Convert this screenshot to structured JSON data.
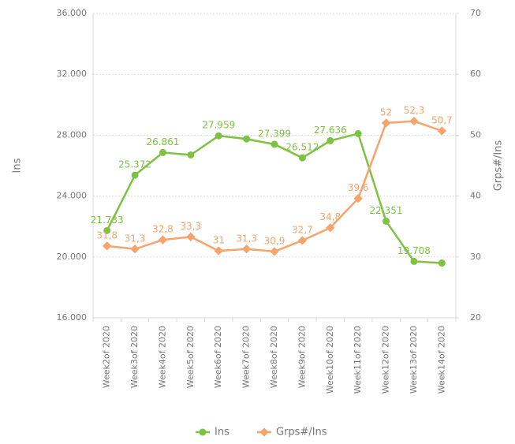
{
  "chart_data": {
    "type": "line",
    "categories": [
      "Week2of 2020",
      "Week3of 2020",
      "Week4of 2020",
      "Week5of 2020",
      "Week6of 2020",
      "Week7of 2020",
      "Week8of 2020",
      "Week9of 2020",
      "Week10of 2020",
      "Week11of 2020",
      "Week12of 2020",
      "Week13of 2020",
      "Week14of 2020"
    ],
    "series": [
      {
        "name": "Ins",
        "color": "#7dc242",
        "values": [
          21733,
          25372,
          26861,
          26700,
          27959,
          27750,
          27399,
          26512,
          27636,
          28100,
          22351,
          19708,
          19600
        ],
        "value_labels": [
          "21.733",
          "25.372",
          "26.861",
          null,
          "27.959",
          null,
          "27.399",
          "26.512",
          "27.636",
          null,
          "22.351",
          "19.708",
          null
        ]
      },
      {
        "name": "Grps#/Ins",
        "color": "#f5a46b",
        "axis": "y2",
        "values": [
          31.8,
          31.3,
          32.8,
          33.3,
          31,
          31.3,
          30.9,
          32.7,
          34.8,
          39.6,
          52,
          52.3,
          50.7
        ],
        "value_labels": [
          "31,8",
          "31,3",
          "32,8",
          "33,3",
          "31",
          "31,3",
          "30,9",
          "32,7",
          "34,8",
          "39,6",
          "52",
          "52,3",
          "50,7"
        ]
      }
    ],
    "y_label": "Ins",
    "y2_label": "Grps#/Ins",
    "ylim": [
      16000,
      36000
    ],
    "yticks": [
      {
        "value": 16000,
        "label": "16.000"
      },
      {
        "value": 20000,
        "label": "20.000"
      },
      {
        "value": 24000,
        "label": "24.000"
      },
      {
        "value": 28000,
        "label": "28.000"
      },
      {
        "value": 32000,
        "label": "32.000"
      },
      {
        "value": 36000,
        "label": "36.000"
      }
    ],
    "y2lim": [
      20,
      70
    ],
    "y2ticks": [
      20,
      30,
      40,
      50,
      60,
      70
    ],
    "grid": true,
    "legend": "bottom"
  }
}
